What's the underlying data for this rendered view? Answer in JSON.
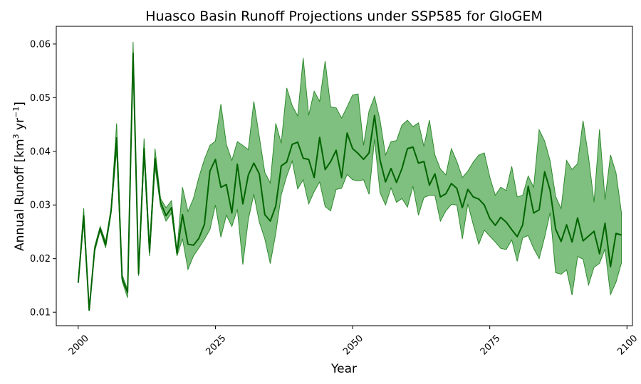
{
  "chart_data": {
    "type": "area",
    "title": "Huasco Basin Runoff Projections under SSP585 for GloGEM",
    "xlabel": "Year",
    "ylabel": "Annual Runoff [km",
    "ylabel_sup1": "3",
    "ylabel_mid": " yr",
    "ylabel_sup2": "−1",
    "ylabel_end": "]",
    "xlim": [
      1996,
      2101
    ],
    "ylim": [
      0.0075,
      0.0633
    ],
    "xticks": [
      2000,
      2025,
      2050,
      2075,
      2100
    ],
    "yticks": [
      0.01,
      0.02,
      0.03,
      0.04,
      0.05,
      0.06
    ],
    "ytick_labels": [
      "0.01",
      "0.02",
      "0.03",
      "0.04",
      "0.05",
      "0.06"
    ],
    "colors": {
      "line": "#006400",
      "band": "#7fbf7f",
      "band_edge": "#2f8a2f"
    },
    "x": [
      2000,
      2001,
      2002,
      2003,
      2004,
      2005,
      2006,
      2007,
      2008,
      2009,
      2010,
      2011,
      2012,
      2013,
      2014,
      2015,
      2016,
      2017,
      2018,
      2019,
      2020,
      2021,
      2022,
      2023,
      2024,
      2025,
      2026,
      2027,
      2028,
      2029,
      2030,
      2031,
      2032,
      2033,
      2034,
      2035,
      2036,
      2037,
      2038,
      2039,
      2040,
      2041,
      2042,
      2043,
      2044,
      2045,
      2046,
      2047,
      2048,
      2049,
      2050,
      2051,
      2052,
      2053,
      2054,
      2055,
      2056,
      2057,
      2058,
      2059,
      2060,
      2061,
      2062,
      2063,
      2064,
      2065,
      2066,
      2067,
      2068,
      2069,
      2070,
      2071,
      2072,
      2073,
      2074,
      2075,
      2076,
      2077,
      2078,
      2079,
      2080,
      2081,
      2082,
      2083,
      2084,
      2085,
      2086,
      2087,
      2088,
      2089,
      2090,
      2091,
      2092,
      2093,
      2094,
      2095,
      2096,
      2097,
      2098,
      2099
    ],
    "mean": [
      0.0155,
      0.028,
      0.0104,
      0.0218,
      0.0256,
      0.0226,
      0.029,
      0.0425,
      0.0163,
      0.0137,
      0.0583,
      0.0172,
      0.0405,
      0.0212,
      0.0387,
      0.0305,
      0.028,
      0.0295,
      0.021,
      0.0282,
      0.0227,
      0.0225,
      0.0238,
      0.0264,
      0.0363,
      0.0385,
      0.0333,
      0.0338,
      0.0285,
      0.0376,
      0.0302,
      0.0356,
      0.0378,
      0.0358,
      0.0282,
      0.027,
      0.0298,
      0.0373,
      0.038,
      0.0413,
      0.0417,
      0.0387,
      0.0385,
      0.0351,
      0.0426,
      0.0366,
      0.0381,
      0.0402,
      0.0351,
      0.0434,
      0.0405,
      0.0396,
      0.0385,
      0.0397,
      0.0467,
      0.0384,
      0.0343,
      0.0368,
      0.0342,
      0.0368,
      0.0405,
      0.0408,
      0.0378,
      0.0381,
      0.0337,
      0.0358,
      0.0315,
      0.0321,
      0.034,
      0.0331,
      0.0295,
      0.0329,
      0.0315,
      0.0311,
      0.03,
      0.0275,
      0.0262,
      0.0277,
      0.0268,
      0.0254,
      0.0241,
      0.0263,
      0.0335,
      0.0285,
      0.0291,
      0.0362,
      0.0327,
      0.0255,
      0.0232,
      0.0263,
      0.0231,
      0.0276,
      0.0233,
      0.0242,
      0.0251,
      0.0209,
      0.0266,
      0.0185,
      0.0247,
      0.0244
    ],
    "upper": [
      0.0155,
      0.0294,
      0.0104,
      0.0223,
      0.026,
      0.0232,
      0.0295,
      0.0452,
      0.017,
      0.0142,
      0.0604,
      0.0178,
      0.0424,
      0.0221,
      0.0405,
      0.0312,
      0.0295,
      0.0308,
      0.0215,
      0.0333,
      0.0288,
      0.0312,
      0.0352,
      0.0385,
      0.0411,
      0.0419,
      0.0488,
      0.0413,
      0.0383,
      0.0418,
      0.0411,
      0.0403,
      0.0493,
      0.0427,
      0.0361,
      0.0341,
      0.0452,
      0.0415,
      0.0518,
      0.0485,
      0.0466,
      0.0574,
      0.0467,
      0.0512,
      0.0493,
      0.0568,
      0.0483,
      0.0481,
      0.0462,
      0.0483,
      0.0505,
      0.0507,
      0.0411,
      0.0475,
      0.0502,
      0.0458,
      0.0393,
      0.0418,
      0.042,
      0.0449,
      0.0458,
      0.0446,
      0.0453,
      0.0409,
      0.0458,
      0.0393,
      0.0367,
      0.0356,
      0.0405,
      0.0381,
      0.0351,
      0.0363,
      0.038,
      0.0393,
      0.0397,
      0.0352,
      0.0318,
      0.0333,
      0.0327,
      0.0372,
      0.0315,
      0.0318,
      0.0354,
      0.0333,
      0.044,
      0.0419,
      0.0382,
      0.0316,
      0.0293,
      0.0383,
      0.0366,
      0.0377,
      0.0457,
      0.0389,
      0.0305,
      0.0441,
      0.031,
      0.0393,
      0.036,
      0.0285
    ],
    "lower": [
      0.0155,
      0.0267,
      0.0104,
      0.0213,
      0.0252,
      0.022,
      0.0285,
      0.0403,
      0.0158,
      0.0127,
      0.0561,
      0.0168,
      0.0388,
      0.0205,
      0.0371,
      0.0298,
      0.027,
      0.0285,
      0.0205,
      0.0237,
      0.018,
      0.0205,
      0.022,
      0.0236,
      0.0254,
      0.03,
      0.024,
      0.0281,
      0.026,
      0.0292,
      0.0189,
      0.0273,
      0.032,
      0.0268,
      0.0237,
      0.0191,
      0.0247,
      0.0319,
      0.0354,
      0.0382,
      0.033,
      0.0347,
      0.0302,
      0.0325,
      0.0343,
      0.0297,
      0.0289,
      0.0329,
      0.0331,
      0.0357,
      0.0347,
      0.0345,
      0.0347,
      0.032,
      0.0423,
      0.0323,
      0.03,
      0.0332,
      0.0305,
      0.0312,
      0.0296,
      0.0335,
      0.0281,
      0.0314,
      0.0318,
      0.0318,
      0.027,
      0.0289,
      0.0301,
      0.03,
      0.0237,
      0.0302,
      0.0263,
      0.0227,
      0.0253,
      0.0242,
      0.0231,
      0.0219,
      0.0217,
      0.0235,
      0.0195,
      0.0239,
      0.0243,
      0.0219,
      0.02,
      0.024,
      0.0286,
      0.0174,
      0.0171,
      0.0179,
      0.0132,
      0.0204,
      0.0199,
      0.0151,
      0.0184,
      0.0191,
      0.0218,
      0.0133,
      0.0156,
      0.0192
    ]
  }
}
